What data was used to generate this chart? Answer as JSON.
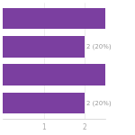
{
  "values": [
    2.5,
    2.0,
    2.5,
    2.0
  ],
  "bar_color": "#7B3FA0",
  "labels": [
    "",
    "2 (20%)",
    "",
    "2 (20%)"
  ],
  "xlim": [
    0,
    2.5
  ],
  "xticks": [
    1,
    2
  ],
  "background_color": "#ffffff",
  "bar_height": 0.75,
  "bar_spacing": 1.0,
  "label_fontsize": 5.0,
  "label_color": "#999999",
  "tick_fontsize": 5.5,
  "tick_color": "#aaaaaa"
}
